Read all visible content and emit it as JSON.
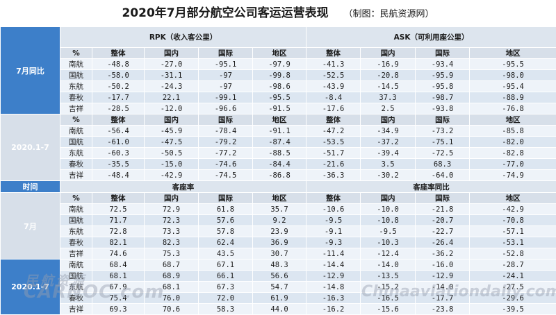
{
  "title": {
    "main": "2020年7月部分航空公司客运运营表现",
    "source": "（制图：民航资源网）"
  },
  "groups": {
    "rpk": "RPK（收入客公里）",
    "ask": "ASK（可利用座公里）",
    "load_factor": "客座率",
    "load_factor_yoy": "客座率同比"
  },
  "col_headers": {
    "unit": "%",
    "cols": [
      "整体",
      "国内",
      "国际",
      "地区"
    ]
  },
  "time_label": "时间",
  "section1": {
    "label": "7月同比",
    "rows": [
      {
        "airline": "南航",
        "rpk": [
          "-48.8",
          "-27.0",
          "-95.1",
          "-97.9"
        ],
        "ask": [
          "-41.3",
          "-16.9",
          "-93.4",
          "-95.5"
        ]
      },
      {
        "airline": "国航",
        "rpk": [
          "-58.0",
          "-31.1",
          "-97",
          "-99.8"
        ],
        "ask": [
          "-52.5",
          "-20.8",
          "-95.9",
          "-98.0"
        ]
      },
      {
        "airline": "东航",
        "rpk": [
          "-50.2",
          "-24.3",
          "-97",
          "-98.6"
        ],
        "ask": [
          "-43.9",
          "-14.5",
          "-95.8",
          "-95.4"
        ]
      },
      {
        "airline": "春秋",
        "rpk": [
          "-17.7",
          "22.1",
          "-99.1",
          "-95.5"
        ],
        "ask": [
          "-8.4",
          "37.3",
          "-98.7",
          "-88.9"
        ]
      },
      {
        "airline": "吉祥",
        "rpk": [
          "-28.5",
          "-12.0",
          "-96.6",
          "-91.5"
        ],
        "ask": [
          "-17.6",
          "2.5",
          "-93.8",
          "-76.8"
        ]
      }
    ]
  },
  "section2": {
    "label": "2020.1-7",
    "rows": [
      {
        "airline": "南航",
        "rpk": [
          "-56.4",
          "-45.9",
          "-78.4",
          "-91.1"
        ],
        "ask": [
          "-47.2",
          "-34.9",
          "-73.2",
          "-85.8"
        ]
      },
      {
        "airline": "国航",
        "rpk": [
          "-61.0",
          "-47.5",
          "-79.2",
          "-87.4"
        ],
        "ask": [
          "-53.5",
          "-37.2",
          "-75.1",
          "-82.0"
        ]
      },
      {
        "airline": "东航",
        "rpk": [
          "-60.3",
          "-50.5",
          "-77.2",
          "-88.5"
        ],
        "ask": [
          "-51.7",
          "-39.4",
          "-72.5",
          "-82.8"
        ]
      },
      {
        "airline": "春秋",
        "rpk": [
          "-35.5",
          "-15.0",
          "-74.6",
          "-84.4"
        ],
        "ask": [
          "-21.6",
          "3.5",
          "68.3",
          "-77.0"
        ]
      },
      {
        "airline": "吉祥",
        "rpk": [
          "-48.4",
          "-42.9",
          "-74.5",
          "-86.8"
        ],
        "ask": [
          "-36.3",
          "-30.2",
          "-64.0",
          "-74.9"
        ]
      }
    ]
  },
  "section3": {
    "label": "7月",
    "rows": [
      {
        "airline": "南航",
        "lf": [
          "72.5",
          "72.9",
          "61.8",
          "35.7"
        ],
        "yoy": [
          "-10.6",
          "-10.0",
          "-21.8",
          "-42.9"
        ]
      },
      {
        "airline": "国航",
        "lf": [
          "71.7",
          "72.3",
          "57.6",
          "9.2"
        ],
        "yoy": [
          "-9.5",
          "-10.8",
          "-20.7",
          "-70.8"
        ]
      },
      {
        "airline": "东航",
        "lf": [
          "72.8",
          "73.3",
          "57.8",
          "23.9"
        ],
        "yoy": [
          "-9.1",
          "-9.5",
          "-22.7",
          "-57.1"
        ]
      },
      {
        "airline": "春秋",
        "lf": [
          "82.1",
          "82.3",
          "62.4",
          "36.9"
        ],
        "yoy": [
          "-9.3",
          "-10.3",
          "-26.4",
          "-53.1"
        ]
      },
      {
        "airline": "吉祥",
        "lf": [
          "74.6",
          "75.3",
          "43.5",
          "30.7"
        ],
        "yoy": [
          "-11.4",
          "-12.4",
          "-36.2",
          "-52.8"
        ]
      }
    ]
  },
  "section4": {
    "label": "2020.1-7",
    "rows": [
      {
        "airline": "南航",
        "lf": [
          "68.4",
          "68.7",
          "67.1",
          "48.3"
        ],
        "yoy": [
          "-14.4",
          "-14.0",
          "-16.0",
          "-28.7"
        ]
      },
      {
        "airline": "国航",
        "lf": [
          "68.1",
          "68.9",
          "66.1",
          "56.6"
        ],
        "yoy": [
          "-12.9",
          "-13.5",
          "-12.9",
          "-24.1"
        ]
      },
      {
        "airline": "东航",
        "lf": [
          "67.9",
          "68.1",
          "67.3",
          "54.7"
        ],
        "yoy": [
          "-14.8",
          "-15.2",
          "-14.0",
          "-27.5"
        ]
      },
      {
        "airline": "春秋",
        "lf": [
          "75.4",
          "76.0",
          "72.0",
          "61.9"
        ],
        "yoy": [
          "-16.3",
          "-16.5",
          "-17.7",
          "-29.6"
        ]
      },
      {
        "airline": "吉祥",
        "lf": [
          "69.3",
          "70.6",
          "58.3",
          "44.0"
        ],
        "yoy": [
          "-16.2",
          "-15.6",
          "-23.8",
          "-39.5"
        ]
      }
    ]
  },
  "watermark": {
    "cn": "民航资源",
    "en": "CARNOC.com",
    "site": "Chinaaviationdaily.com"
  }
}
